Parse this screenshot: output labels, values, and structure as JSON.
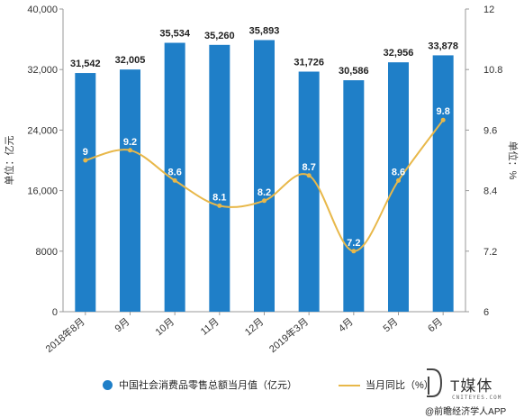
{
  "chart_data": {
    "type": "bar+line",
    "categories": [
      "2018年8月",
      "9月",
      "10月",
      "11月",
      "12月",
      "2019年3月",
      "4月",
      "5月",
      "6月"
    ],
    "series": [
      {
        "name": "中国社会消费品零售总额当月值（亿元）",
        "type": "bar",
        "axis": "left",
        "color": "#1f7fc8",
        "values": [
          31542,
          32005,
          35534,
          35260,
          35893,
          31726,
          30586,
          32956,
          33878
        ],
        "labels": [
          "31,542",
          "32,005",
          "35,534",
          "35,260",
          "35,893",
          "31,726",
          "30,586",
          "32,956",
          "33,878"
        ]
      },
      {
        "name": "当月同比（%）",
        "type": "line",
        "axis": "right",
        "color": "#e8b84a",
        "values": [
          9,
          9.2,
          8.6,
          8.1,
          8.2,
          8.7,
          7.2,
          8.6,
          9.8
        ],
        "labels": [
          "9",
          "9.2",
          "8.6",
          "8.1",
          "8.2",
          "8.7",
          "7.2",
          "8.6",
          "9.8"
        ]
      }
    ],
    "y_left": {
      "label": "单位：亿元",
      "ylim": [
        0,
        40000
      ],
      "ticks": [
        0,
        8000,
        16000,
        24000,
        32000,
        40000
      ],
      "tick_labels": [
        "0",
        "8000",
        "16,000",
        "24,000",
        "32,000",
        "40,000"
      ]
    },
    "y_right": {
      "label": "单位：%",
      "ylim": [
        6,
        12
      ],
      "ticks": [
        6,
        7.2,
        8.4,
        9.6,
        10.8,
        12
      ],
      "tick_labels": [
        "6",
        "7.2",
        "8.4",
        "9.6",
        "10.8",
        "12"
      ]
    },
    "grid": false,
    "legend_position": "bottom"
  },
  "legend": {
    "bar_label": "中国社会消费品零售总额当月值（亿元）",
    "line_label": "当月同比（%）"
  },
  "brand": {
    "name": "T媒体",
    "url": "CNITEYES.COM",
    "sub": "@前瞻经济学人APP"
  }
}
